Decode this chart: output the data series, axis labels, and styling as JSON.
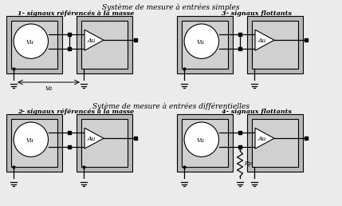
{
  "title_top": "Système de mesure à entrées simples",
  "title_mid": "Sytème de mesure à entrées différentielles",
  "sub1": "1- signaux référencés à la masse",
  "sub2": "2- signaux référencés à la masse",
  "sub3": "3- signaux flottants",
  "sub4": "4- signaux flottants",
  "label_Va": "Va",
  "label_Vu": "Vu",
  "label_Au": "Au",
  "label_Rp": "Rp",
  "bg_color": "#ebebeb",
  "box_outer": "#b8b8b8",
  "box_inner": "#d0d0d0",
  "white": "#ffffff",
  "black": "#000000"
}
